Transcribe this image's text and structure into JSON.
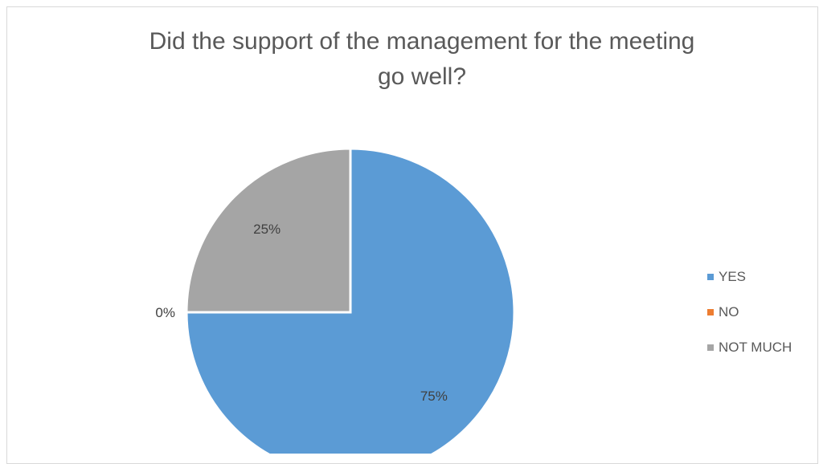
{
  "chart_data": {
    "type": "pie",
    "title": "Did the support of the management for the meeting go well?",
    "title_lines": [
      "Did the support of the management for the meeting",
      "go well?"
    ],
    "categories": [
      "YES",
      "NO",
      "NOT MUCH"
    ],
    "values": [
      75,
      0,
      25
    ],
    "data_labels": [
      "75%",
      "0%",
      "25%"
    ],
    "colors": [
      "#5b9bd5",
      "#ed7d31",
      "#a5a5a5"
    ],
    "legend_position": "right"
  }
}
